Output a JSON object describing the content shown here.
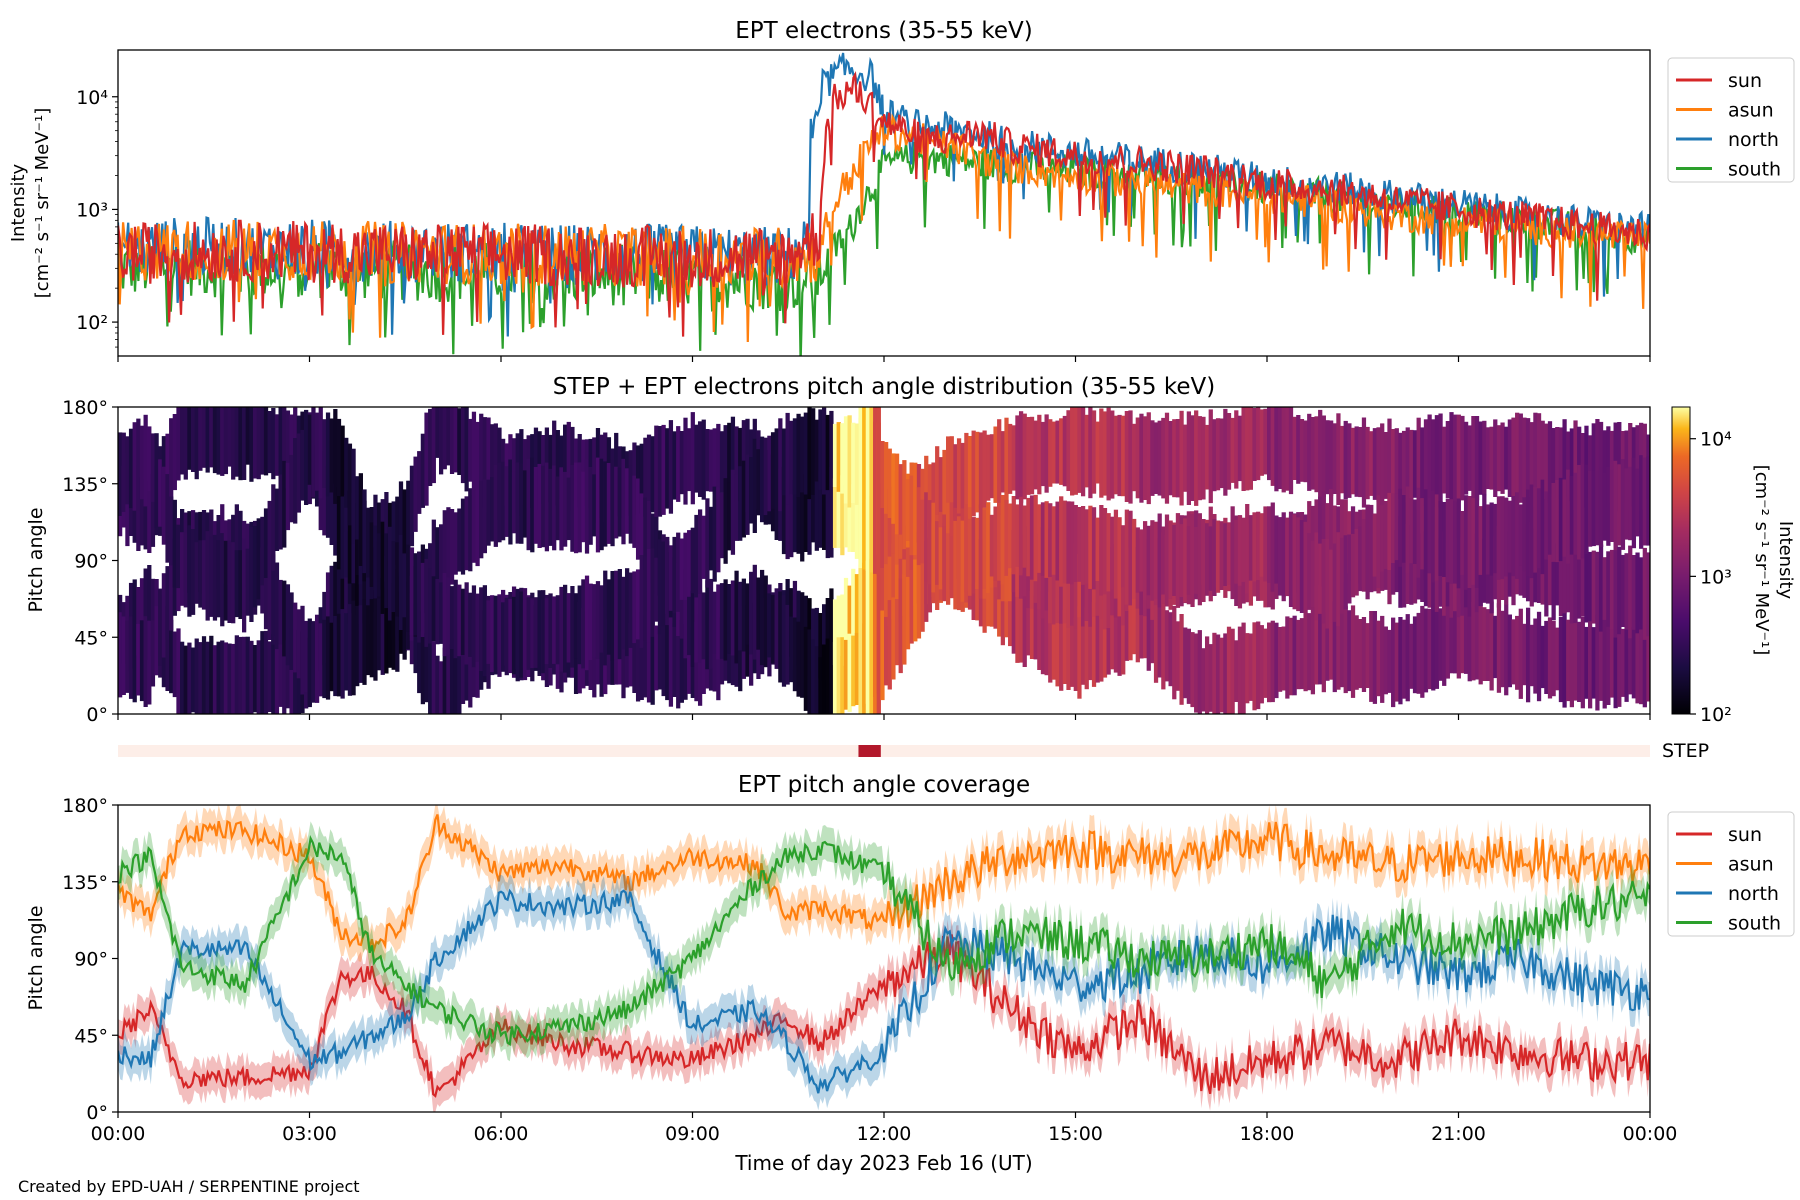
{
  "footer": "Created by EPD-UAH / SERPENTINE project",
  "colors": {
    "sun": "#d62728",
    "asun": "#ff7f0e",
    "north": "#1f77b4",
    "south": "#2ca02c",
    "step_bar": "#b2182b",
    "step_bg": "#fdeee8"
  },
  "chart_data": [
    {
      "type": "line",
      "title": "EPT electrons (35-55 keV)",
      "ylabel": [
        "Intensity",
        "[cm⁻² s⁻¹ sr⁻¹ MeV⁻¹]"
      ],
      "yscale": "log",
      "ylim": [
        50,
        26000
      ],
      "yticks": [
        {
          "v": 100,
          "label": "10²"
        },
        {
          "v": 1000,
          "label": "10³"
        },
        {
          "v": 10000,
          "label": "10⁴"
        }
      ],
      "xlim_hours": [
        0,
        24
      ],
      "legend": "outside-right",
      "series": [
        {
          "name": "sun",
          "color_key": "sun",
          "x": [
            0,
            1,
            2,
            3,
            4,
            5,
            6,
            7,
            8,
            9,
            10,
            10.5,
            11,
            11.2,
            11.5,
            12,
            12.5,
            13,
            13.5,
            14,
            15,
            16,
            17,
            18,
            19,
            20,
            21,
            22,
            23,
            24
          ],
          "y": [
            400,
            420,
            430,
            420,
            410,
            400,
            400,
            390,
            390,
            380,
            380,
            390,
            600,
            9000,
            12000,
            6000,
            4500,
            4200,
            4800,
            3600,
            3000,
            2600,
            2200,
            1700,
            1500,
            1200,
            1000,
            850,
            700,
            600
          ]
        },
        {
          "name": "asun",
          "color_key": "asun",
          "x": [
            0,
            1,
            2,
            3,
            4,
            5,
            6,
            7,
            8,
            9,
            10,
            10.5,
            11,
            11.5,
            12,
            12.5,
            13,
            13.5,
            14,
            15,
            16,
            17,
            18,
            19,
            20,
            21,
            22,
            23,
            24
          ],
          "y": [
            420,
            440,
            440,
            430,
            420,
            410,
            400,
            400,
            390,
            380,
            380,
            380,
            420,
            2000,
            5000,
            4200,
            3800,
            2800,
            2400,
            2000,
            1700,
            1500,
            1300,
            1100,
            900,
            800,
            700,
            600,
            550
          ]
        },
        {
          "name": "north",
          "color_key": "north",
          "x": [
            0,
            1,
            2,
            3,
            4,
            5,
            6,
            7,
            8,
            9,
            10,
            10.5,
            10.8,
            11,
            11.4,
            11.8,
            12,
            12.5,
            13,
            13.5,
            14,
            15,
            16,
            17,
            18,
            19,
            20,
            21,
            22,
            23,
            24
          ],
          "y": [
            450,
            460,
            450,
            440,
            430,
            420,
            410,
            400,
            400,
            390,
            380,
            380,
            500,
            12000,
            18000,
            15000,
            7000,
            5500,
            5200,
            4600,
            3800,
            3100,
            2700,
            2300,
            1800,
            1600,
            1300,
            1100,
            900,
            750,
            650
          ]
        },
        {
          "name": "south",
          "color_key": "south",
          "x": [
            0,
            1,
            2,
            3,
            4,
            5,
            6,
            7,
            8,
            9,
            10,
            10.5,
            11,
            11.5,
            11.8,
            12,
            12.5,
            13,
            13.5,
            14,
            15,
            16,
            17,
            18,
            19,
            20,
            21,
            22,
            23,
            24
          ],
          "y": [
            300,
            320,
            300,
            300,
            290,
            280,
            280,
            270,
            260,
            250,
            240,
            230,
            240,
            700,
            1500,
            2500,
            2900,
            2800,
            2600,
            2400,
            2200,
            2000,
            1800,
            1500,
            1300,
            1100,
            950,
            800,
            650,
            550
          ]
        }
      ]
    },
    {
      "type": "heatmap",
      "title": "STEP + EPT electrons pitch angle distribution (35-55 keV)",
      "ylabel": "Pitch angle",
      "ylim": [
        0,
        180
      ],
      "yticks": [
        "0°",
        "45°",
        "90°",
        "135°",
        "180°"
      ],
      "colorbar": {
        "label": [
          "Intensity",
          "[cm⁻² s⁻¹ sr⁻¹ MeV⁻¹]"
        ],
        "scale": "log",
        "range": [
          100,
          17000
        ],
        "ticks": [
          {
            "v": 100,
            "label": "10²"
          },
          {
            "v": 1000,
            "label": "10³"
          },
          {
            "v": 10000,
            "label": "10⁴"
          }
        ]
      },
      "segments": [
        {
          "x": [
            0,
            1.0
          ],
          "level": 300
        },
        {
          "x": [
            1.0,
            3.3
          ],
          "level": 250
        },
        {
          "x": [
            3.3,
            4.5
          ],
          "level": 180
        },
        {
          "x": [
            4.5,
            5.5
          ],
          "level": 260
        },
        {
          "x": [
            5.5,
            7.0
          ],
          "level": 280
        },
        {
          "x": [
            7.0,
            9.5
          ],
          "level": 300
        },
        {
          "x": [
            9.5,
            10.7
          ],
          "level": 230
        },
        {
          "x": [
            10.7,
            11.2
          ],
          "level": 160
        },
        {
          "x": [
            11.2,
            11.8
          ],
          "level": 15000
        },
        {
          "x": [
            11.8,
            12.5
          ],
          "level": 5500
        },
        {
          "x": [
            12.5,
            14
          ],
          "level": 4200
        },
        {
          "x": [
            14,
            16
          ],
          "level": 2700
        },
        {
          "x": [
            16,
            18
          ],
          "level": 1900
        },
        {
          "x": [
            18,
            20
          ],
          "level": 1300
        },
        {
          "x": [
            20,
            22
          ],
          "level": 1000
        },
        {
          "x": [
            22,
            24
          ],
          "level": 850
        }
      ]
    },
    {
      "type": "bar",
      "name": "STEP",
      "label": "STEP",
      "xlim_hours": [
        0,
        24
      ],
      "highlight_hours": [
        11.6,
        11.95
      ]
    },
    {
      "type": "line",
      "title": "EPT pitch angle coverage",
      "ylabel": "Pitch angle",
      "ylim": [
        0,
        180
      ],
      "yticks": [
        "0°",
        "45°",
        "90°",
        "135°",
        "180°"
      ],
      "xlabel": "Time of day 2023 Feb 16 (UT)",
      "xticks": [
        "00:00",
        "03:00",
        "06:00",
        "09:00",
        "12:00",
        "15:00",
        "18:00",
        "21:00",
        "00:00"
      ],
      "legend": "outside-right",
      "series": [
        {
          "name": "sun",
          "color_key": "sun",
          "x": [
            0,
            0.5,
            1,
            2,
            3,
            3.5,
            4,
            4.5,
            5,
            6,
            7,
            8,
            9,
            10,
            10.5,
            11,
            12,
            13,
            14,
            15,
            16,
            17,
            18,
            19,
            20,
            21,
            22,
            23,
            24
          ],
          "y": [
            45,
            60,
            20,
            20,
            25,
            80,
            80,
            60,
            10,
            50,
            40,
            35,
            30,
            45,
            55,
            40,
            75,
            95,
            60,
            35,
            55,
            20,
            30,
            40,
            30,
            45,
            35,
            30,
            30
          ]
        },
        {
          "name": "asun",
          "color_key": "asun",
          "x": [
            0,
            0.5,
            1,
            2,
            3,
            3.5,
            4,
            4.5,
            5,
            6,
            7,
            8,
            9,
            10,
            10.5,
            11,
            12,
            13,
            14,
            15,
            16,
            17,
            18,
            19,
            20,
            21,
            22,
            23,
            24
          ],
          "y": [
            130,
            115,
            165,
            165,
            150,
            105,
            100,
            110,
            170,
            140,
            145,
            135,
            150,
            145,
            115,
            120,
            110,
            135,
            150,
            155,
            150,
            150,
            160,
            150,
            145,
            150,
            150,
            145,
            145
          ]
        },
        {
          "name": "north",
          "color_key": "north",
          "x": [
            0,
            0.5,
            1,
            2,
            3,
            3.5,
            4,
            4.5,
            5,
            6,
            7,
            8,
            9,
            10,
            10.5,
            11,
            12,
            13,
            14,
            15,
            16,
            17,
            18,
            19,
            20,
            21,
            22,
            23,
            24
          ],
          "y": [
            35,
            30,
            95,
            95,
            30,
            35,
            45,
            55,
            90,
            125,
            120,
            125,
            50,
            60,
            40,
            15,
            35,
            100,
            90,
            75,
            80,
            95,
            85,
            105,
            90,
            80,
            90,
            75,
            70
          ]
        },
        {
          "name": "south",
          "color_key": "south",
          "x": [
            0,
            0.5,
            1,
            2,
            3,
            3.5,
            4,
            4.5,
            5,
            6,
            7,
            8,
            9,
            10,
            10.5,
            11,
            12,
            13,
            14,
            15,
            16,
            17,
            18,
            19,
            20,
            21,
            22,
            23,
            24
          ],
          "y": [
            140,
            150,
            85,
            75,
            155,
            150,
            90,
            75,
            60,
            45,
            50,
            60,
            90,
            135,
            150,
            155,
            140,
            85,
            105,
            100,
            90,
            90,
            100,
            75,
            110,
            100,
            105,
            120,
            125
          ]
        }
      ]
    }
  ]
}
